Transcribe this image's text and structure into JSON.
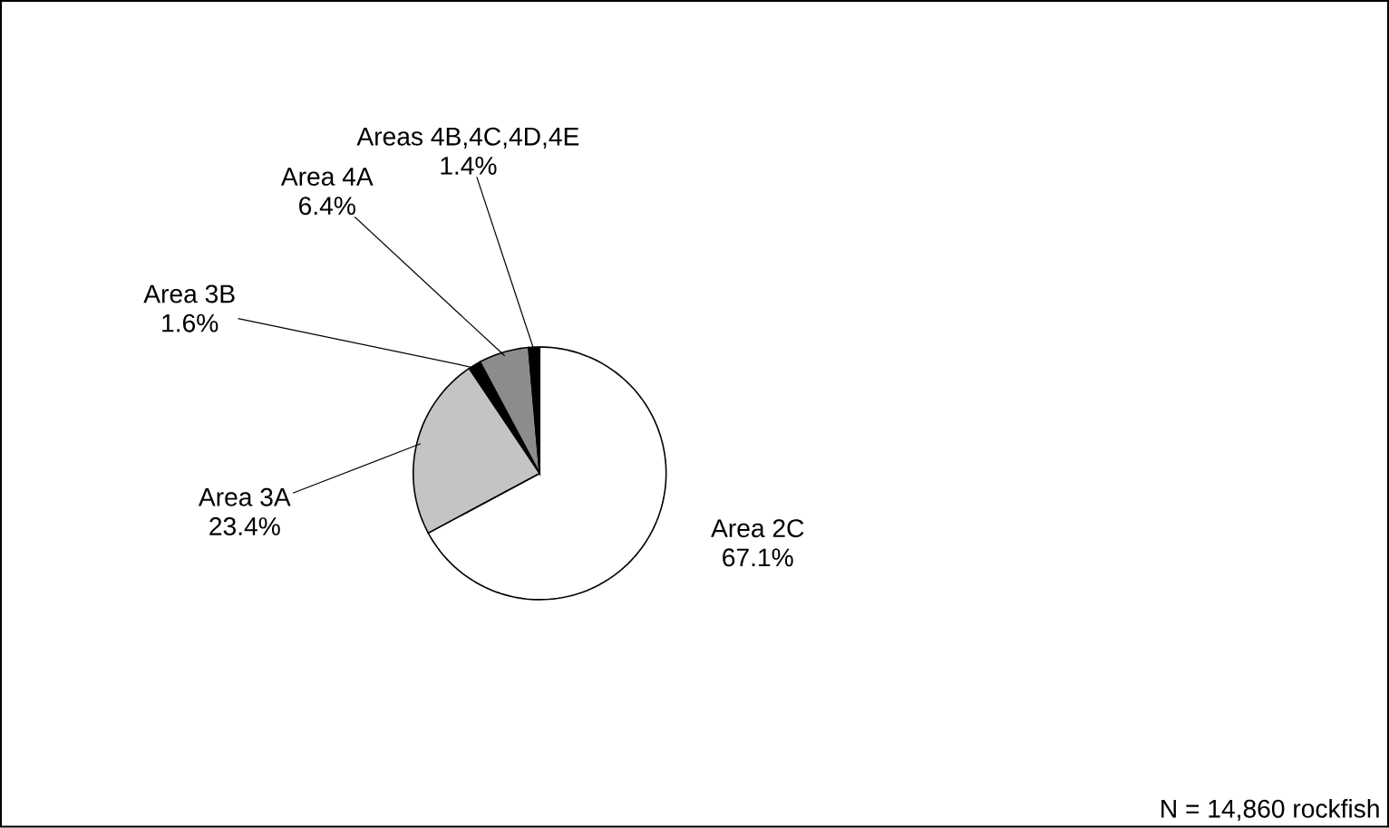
{
  "chart_data": {
    "type": "pie",
    "categories": [
      "Area 2C",
      "Area 3A",
      "Area 3B",
      "Area 4A",
      "Areas 4B,4C,4D,4E"
    ],
    "values": [
      67.1,
      23.4,
      1.6,
      6.4,
      1.4
    ],
    "value_labels": [
      "67.1%",
      "23.4%",
      "1.6%",
      "6.4%",
      "1.4%"
    ],
    "colors": [
      "#ffffff",
      "#c4c4c4",
      "#000000",
      "#8c8c8c",
      "#000000"
    ],
    "annotations": [
      "N = 14,860 rockfish"
    ]
  }
}
